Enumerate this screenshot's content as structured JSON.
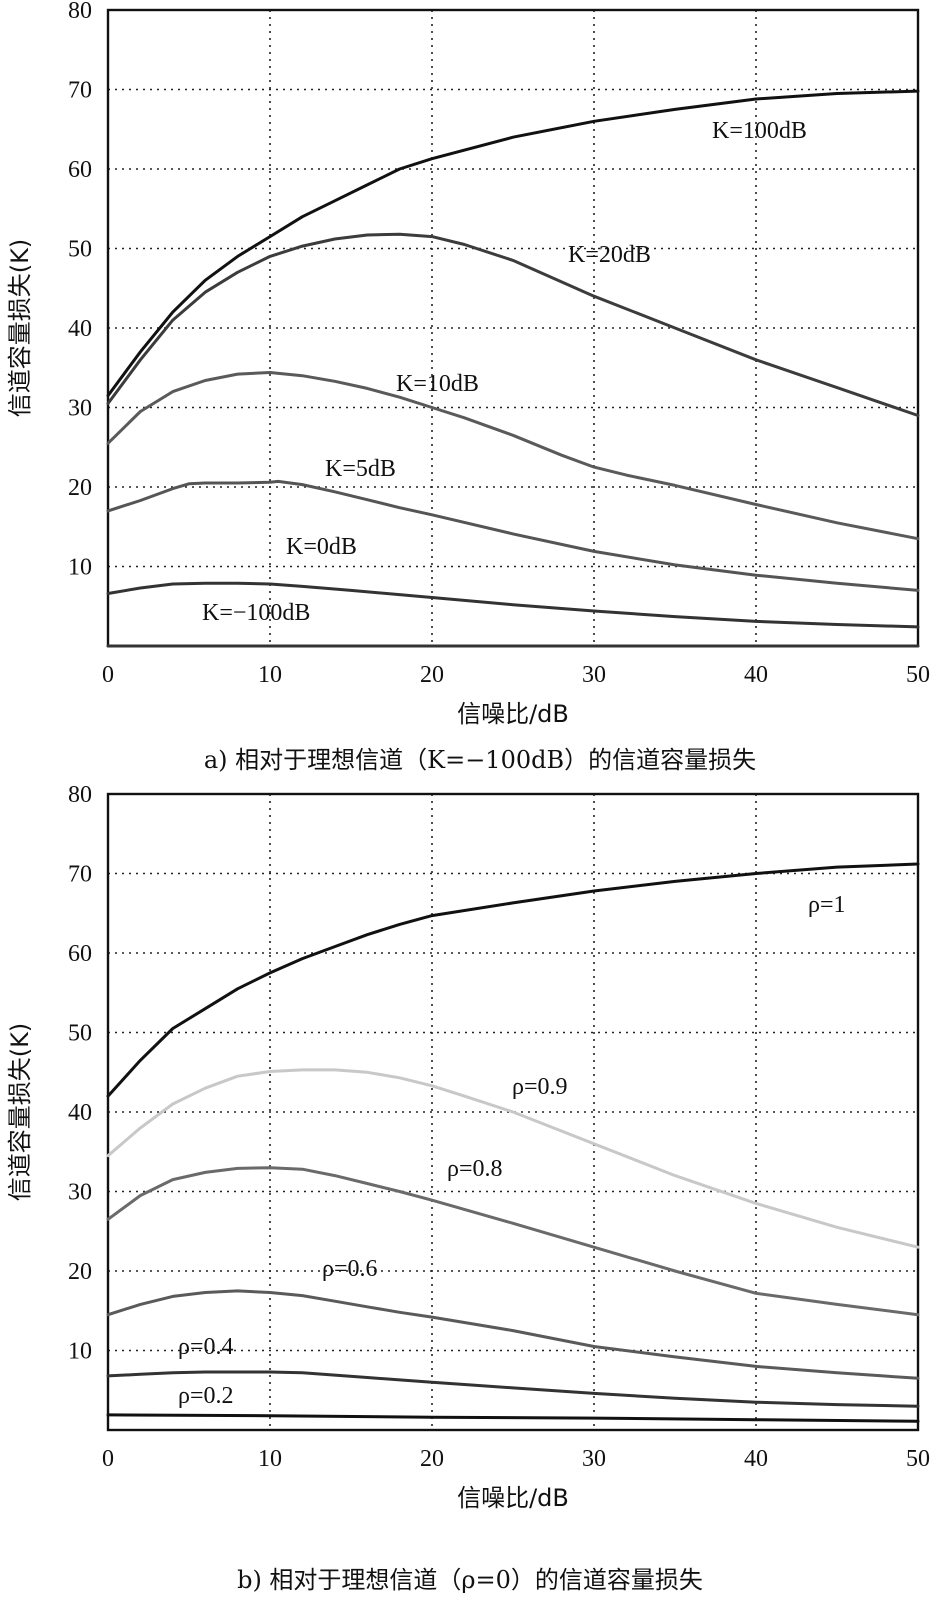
{
  "chart_data": [
    {
      "type": "line",
      "xlabel": "信噪比/dB",
      "ylabel": "信道容量损失(K)",
      "caption": "a) 相对于理想信道（K=−100dB）的信道容量损失",
      "xlim": [
        0,
        50
      ],
      "ylim": [
        0,
        80
      ],
      "xticks": [
        0,
        10,
        20,
        30,
        40,
        50
      ],
      "yticks": [
        0,
        10,
        20,
        30,
        40,
        50,
        60,
        70,
        80
      ],
      "grid": true,
      "series": [
        {
          "name": "K=100dB",
          "color": "#111111",
          "x": [
            0,
            2,
            4,
            6,
            8,
            10,
            12,
            14,
            16,
            18,
            20,
            25,
            30,
            35,
            40,
            45,
            50
          ],
          "y": [
            31.5,
            37,
            42,
            46,
            49,
            51.5,
            54,
            56,
            58,
            60,
            61.3,
            64,
            66,
            67.5,
            68.8,
            69.5,
            69.8
          ]
        },
        {
          "name": "K=20dB",
          "color": "#3c3c3c",
          "x": [
            0,
            2,
            4,
            6,
            8,
            10,
            12,
            14,
            16,
            18,
            20,
            22,
            25,
            30,
            35,
            40,
            45,
            50
          ],
          "y": [
            30.5,
            36,
            41,
            44.5,
            47,
            49,
            50.3,
            51.2,
            51.7,
            51.8,
            51.5,
            50.5,
            48.5,
            44,
            40,
            36,
            32.5,
            29
          ]
        },
        {
          "name": "K=10dB",
          "color": "#5a5a5a",
          "x": [
            0,
            2,
            4,
            6,
            8,
            10,
            12,
            14,
            16,
            18,
            20,
            22,
            25,
            28,
            30,
            32,
            35,
            40,
            45,
            50
          ],
          "y": [
            25.5,
            29.5,
            32,
            33.4,
            34.2,
            34.4,
            34,
            33.3,
            32.4,
            31.3,
            30,
            28.7,
            26.5,
            24,
            22.5,
            21.5,
            20.2,
            17.8,
            15.5,
            13.5
          ]
        },
        {
          "name": "K=5dB",
          "color": "#555555",
          "x": [
            0,
            2,
            4,
            5,
            6,
            8,
            10,
            10.5,
            12,
            14,
            16,
            18,
            20,
            25,
            30,
            35,
            40,
            45,
            50
          ],
          "y": [
            17,
            18.3,
            19.8,
            20.4,
            20.5,
            20.5,
            20.6,
            20.7,
            20.3,
            19.4,
            18.4,
            17.4,
            16.5,
            14.1,
            11.9,
            10.2,
            8.9,
            7.9,
            7
          ]
        },
        {
          "name": "K=0dB",
          "color": "#333333",
          "x": [
            0,
            2,
            4,
            6,
            8,
            10,
            12,
            15,
            20,
            25,
            30,
            35,
            40,
            45,
            50
          ],
          "y": [
            6.6,
            7.3,
            7.8,
            7.9,
            7.9,
            7.8,
            7.5,
            7,
            6.1,
            5.2,
            4.4,
            3.7,
            3.1,
            2.7,
            2.4
          ]
        },
        {
          "name": "K=−100dB",
          "color": "#333333",
          "x": [
            0,
            50
          ],
          "y": [
            0,
            0
          ]
        }
      ],
      "labels": [
        "K=100dB",
        "K=20dB",
        "K=10dB",
        "K=5dB",
        "K=0dB",
        "K=−100dB"
      ]
    },
    {
      "type": "line",
      "xlabel": "信噪比/dB",
      "ylabel": "信道容量损失(K)",
      "caption": "b) 相对于理想信道（ρ=0）的信道容量损失",
      "xlim": [
        0,
        50
      ],
      "ylim": [
        0,
        80
      ],
      "xticks": [
        0,
        10,
        20,
        30,
        40,
        50
      ],
      "yticks": [
        0,
        10,
        20,
        30,
        40,
        50,
        60,
        70,
        80
      ],
      "grid": true,
      "series": [
        {
          "name": "ρ=1",
          "color": "#111111",
          "x": [
            0,
            2,
            4,
            6,
            8,
            10,
            12,
            14,
            16,
            18,
            20,
            25,
            30,
            35,
            40,
            45,
            50
          ],
          "y": [
            42,
            46.5,
            50.5,
            53,
            55.5,
            57.5,
            59.3,
            60.8,
            62.3,
            63.6,
            64.7,
            66.3,
            67.8,
            69,
            70,
            70.8,
            71.2
          ]
        },
        {
          "name": "ρ=0.9",
          "color": "#c8c8c8",
          "x": [
            0,
            2,
            4,
            6,
            8,
            10,
            12,
            14,
            16,
            18,
            20,
            22,
            25,
            30,
            35,
            40,
            45,
            50
          ],
          "y": [
            34.5,
            38,
            41,
            43,
            44.5,
            45.1,
            45.3,
            45.3,
            45,
            44.3,
            43.3,
            42,
            40,
            36,
            32,
            28.5,
            25.5,
            23
          ]
        },
        {
          "name": "ρ=0.8",
          "color": "#6a6a6a",
          "x": [
            0,
            2,
            4,
            6,
            8,
            10,
            12,
            14,
            16,
            18,
            20,
            25,
            30,
            35,
            40,
            45,
            50
          ],
          "y": [
            26.5,
            29.5,
            31.5,
            32.4,
            32.9,
            33,
            32.8,
            32,
            31,
            30,
            28.9,
            26,
            23,
            20,
            17.2,
            15.8,
            14.5
          ]
        },
        {
          "name": "ρ=0.6",
          "color": "#5a5a5a",
          "x": [
            0,
            2,
            4,
            6,
            8,
            10,
            12,
            14,
            16,
            18,
            20,
            25,
            30,
            35,
            40,
            45,
            50
          ],
          "y": [
            14.5,
            15.8,
            16.8,
            17.3,
            17.5,
            17.3,
            16.9,
            16.2,
            15.5,
            14.8,
            14.2,
            12.5,
            10.5,
            9.2,
            8,
            7.2,
            6.5
          ]
        },
        {
          "name": "ρ=0.4",
          "color": "#333333",
          "x": [
            0,
            2,
            4,
            6,
            8,
            10,
            12,
            14,
            16,
            18,
            20,
            25,
            30,
            35,
            40,
            45,
            50
          ],
          "y": [
            6.8,
            7,
            7.2,
            7.3,
            7.3,
            7.3,
            7.2,
            6.9,
            6.6,
            6.3,
            6,
            5.3,
            4.6,
            4,
            3.5,
            3.2,
            3
          ]
        },
        {
          "name": "ρ=0.2",
          "color": "#111111",
          "x": [
            0,
            10,
            20,
            30,
            40,
            50
          ],
          "y": [
            1.9,
            1.8,
            1.6,
            1.5,
            1.3,
            1.1
          ]
        }
      ],
      "labels": [
        "ρ=1",
        "ρ=0.9",
        "ρ=0.8",
        "ρ=0.6",
        "ρ=0.4",
        "ρ=0.2"
      ]
    }
  ]
}
